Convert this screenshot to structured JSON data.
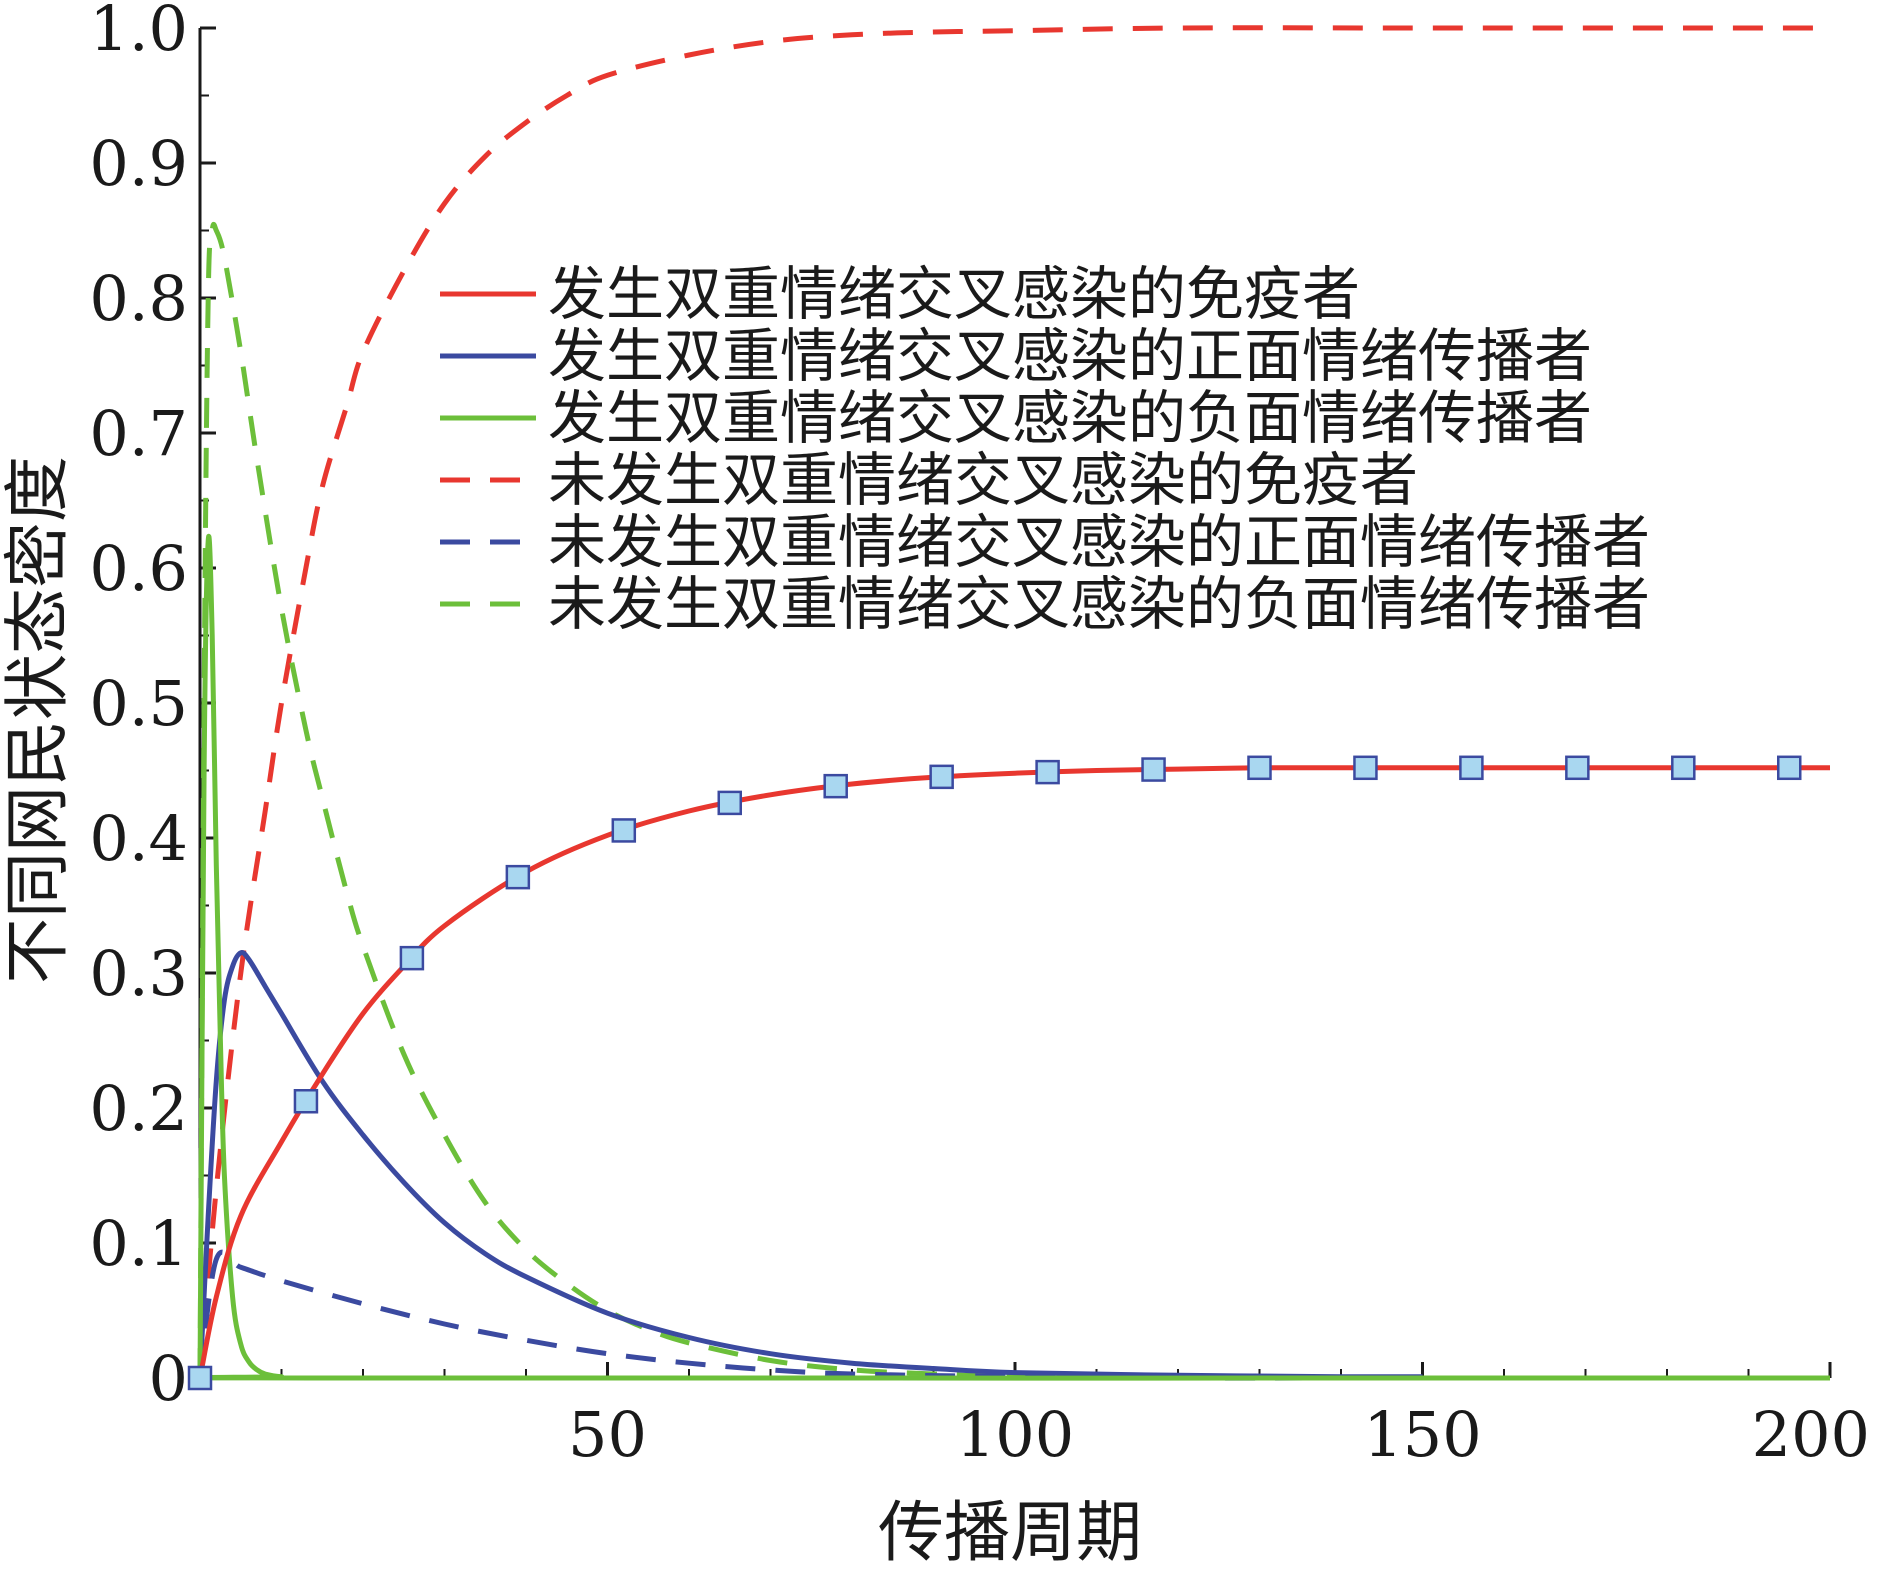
{
  "chart_data": {
    "type": "line",
    "xlabel": "传播周期",
    "ylabel": "不同网民状态密度",
    "xlim": [
      0,
      200
    ],
    "ylim": [
      0,
      1.0
    ],
    "xticks": [
      50,
      100,
      150,
      200
    ],
    "yticks": [
      0,
      0.1,
      0.2,
      0.3,
      0.4,
      0.5,
      0.6,
      0.7,
      0.8,
      0.9,
      1.0
    ],
    "xtick_labels": [
      "50",
      "100",
      "150",
      "200"
    ],
    "ytick_labels": [
      "0",
      "0.1",
      "0.2",
      "0.3",
      "0.4",
      "0.5",
      "0.6",
      "0.7",
      "0.8",
      "0.9",
      "1.0"
    ],
    "grid": false,
    "legend_position": "upper-right",
    "series": [
      {
        "name": "发生双重情绪交叉感染的免疫者",
        "color": "#e8372f",
        "dash": "solid",
        "x": [
          0,
          2,
          5,
          10,
          15,
          20,
          25,
          30,
          40,
          50,
          60,
          70,
          80,
          90,
          100,
          110,
          120,
          130,
          140,
          150,
          160,
          170,
          180,
          190,
          200
        ],
        "y": [
          0,
          0.06,
          0.12,
          0.175,
          0.225,
          0.27,
          0.305,
          0.335,
          0.375,
          0.402,
          0.42,
          0.432,
          0.44,
          0.445,
          0.448,
          0.45,
          0.451,
          0.452,
          0.452,
          0.452,
          0.452,
          0.452,
          0.452,
          0.452,
          0.452
        ],
        "markers_x": [
          0,
          13,
          26,
          39,
          52,
          65,
          78,
          91,
          104,
          117,
          130,
          143,
          156,
          169,
          182,
          195
        ],
        "marker_color": "#a9d7f0"
      },
      {
        "name": "发生双重情绪交叉感染的正面情绪传播者",
        "color": "#3b4aa0",
        "dash": "solid",
        "x": [
          0,
          1,
          2,
          3,
          4,
          5,
          6,
          8,
          10,
          15,
          20,
          25,
          30,
          35,
          40,
          50,
          60,
          70,
          80,
          90,
          100,
          120,
          140,
          150
        ],
        "y": [
          0,
          0.12,
          0.22,
          0.28,
          0.305,
          0.315,
          0.31,
          0.29,
          0.27,
          0.22,
          0.18,
          0.145,
          0.115,
          0.092,
          0.075,
          0.048,
          0.03,
          0.018,
          0.011,
          0.007,
          0.004,
          0.002,
          0.001,
          0.001
        ]
      },
      {
        "name": "发生双重情绪交叉感染的负面情绪传播者",
        "color": "#6cbf3a",
        "dash": "solid",
        "x": [
          0,
          0.5,
          1,
          1.5,
          2,
          2.5,
          3,
          4,
          5,
          6,
          7,
          8,
          10,
          15,
          200
        ],
        "y": [
          0,
          0.45,
          0.62,
          0.55,
          0.38,
          0.25,
          0.15,
          0.06,
          0.025,
          0.012,
          0.006,
          0.003,
          0.001,
          0,
          0
        ]
      },
      {
        "name": "未发生双重情绪交叉感染的免疫者",
        "color": "#e8372f",
        "dash": "dashed",
        "x": [
          0,
          2,
          5,
          8,
          10,
          13,
          15,
          18,
          20,
          25,
          30,
          35,
          40,
          45,
          50,
          60,
          70,
          80,
          90,
          100,
          120,
          150,
          200
        ],
        "y": [
          0,
          0.14,
          0.3,
          0.42,
          0.5,
          0.6,
          0.66,
          0.72,
          0.76,
          0.82,
          0.87,
          0.905,
          0.93,
          0.95,
          0.965,
          0.98,
          0.99,
          0.995,
          0.997,
          0.998,
          1.0,
          1.0,
          1.0
        ]
      },
      {
        "name": "未发生双重情绪交叉感染的正面情绪传播者",
        "color": "#3b4aa0",
        "dash": "dashed",
        "x": [
          0,
          2,
          5,
          10,
          20,
          30,
          40,
          50,
          60,
          70,
          80,
          100,
          120,
          150,
          200
        ],
        "y": [
          0,
          0.088,
          0.082,
          0.072,
          0.055,
          0.04,
          0.028,
          0.018,
          0.011,
          0.006,
          0.003,
          0.001,
          0,
          0,
          0
        ]
      },
      {
        "name": "未发生双重情绪交叉感染的负面情绪传播者",
        "color": "#6cbf3a",
        "dash": "dashed",
        "x": [
          0,
          0.5,
          1,
          1.5,
          2,
          3,
          5,
          7,
          10,
          13,
          15,
          18,
          20,
          25,
          30,
          35,
          40,
          45,
          50,
          55,
          60,
          70,
          80,
          90,
          100,
          120
        ],
        "y": [
          0,
          0.5,
          0.8,
          0.85,
          0.85,
          0.83,
          0.76,
          0.68,
          0.57,
          0.48,
          0.43,
          0.36,
          0.32,
          0.24,
          0.18,
          0.13,
          0.095,
          0.07,
          0.05,
          0.036,
          0.026,
          0.013,
          0.006,
          0.003,
          0.001,
          0
        ]
      }
    ]
  }
}
